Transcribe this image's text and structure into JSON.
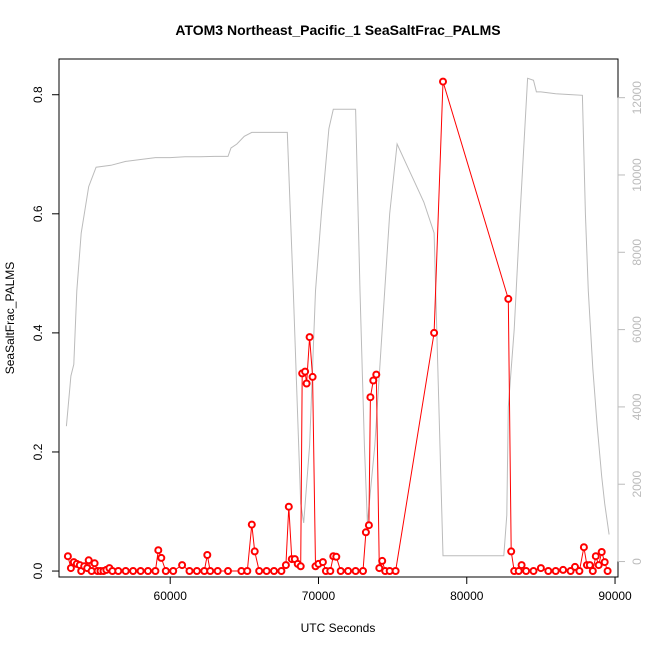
{
  "chart_data": {
    "type": "scatter",
    "title": "ATOM3 Northeast_Pacific_1 SeaSaltFrac_PALMS",
    "xlabel": "UTC Seconds",
    "ylabel": "SeaSaltFrac_PALMS",
    "xlim": [
      52500,
      90200
    ],
    "ylim": [
      -0.01,
      0.86
    ],
    "y2lim": [
      -400,
      13000
    ],
    "x_ticks": [
      60000,
      70000,
      80000,
      90000
    ],
    "y_ticks": [
      0.0,
      0.2,
      0.4,
      0.6,
      0.8
    ],
    "y2_ticks": [
      0,
      2000,
      4000,
      6000,
      8000,
      10000,
      12000
    ],
    "colors": {
      "primary": "#ff0000",
      "secondary": "#bbbbbb",
      "frame": "#000000"
    },
    "series": [
      {
        "role": "primary",
        "style": "points-connected",
        "points": [
          [
            53100,
            0.025
          ],
          [
            53300,
            0.005
          ],
          [
            53500,
            0.015
          ],
          [
            53700,
            0.012
          ],
          [
            53900,
            0.01
          ],
          [
            54000,
            0.0
          ],
          [
            54200,
            0.008
          ],
          [
            54400,
            0.005
          ],
          [
            54500,
            0.018
          ],
          [
            54700,
            0.0
          ],
          [
            54900,
            0.013
          ],
          [
            55100,
            0.0
          ],
          [
            55300,
            0.0
          ],
          [
            55500,
            0.0
          ],
          [
            55700,
            0.002
          ],
          [
            55900,
            0.005
          ],
          [
            56100,
            0.0
          ],
          [
            56500,
            0.0
          ],
          [
            57000,
            0.0
          ],
          [
            57500,
            0.0
          ],
          [
            58000,
            0.0
          ],
          [
            58500,
            0.0
          ],
          [
            59000,
            0.0
          ],
          [
            59200,
            0.035
          ],
          [
            59400,
            0.022
          ],
          [
            59700,
            0.0
          ],
          [
            60200,
            0.0
          ],
          [
            60800,
            0.01
          ],
          [
            61300,
            0.0
          ],
          [
            61800,
            0.0
          ],
          [
            62300,
            0.0
          ],
          [
            62500,
            0.027
          ],
          [
            62700,
            0.0
          ],
          [
            63200,
            0.0
          ],
          [
            63900,
            0.0
          ],
          [
            64800,
            0.0
          ],
          [
            65200,
            0.0
          ],
          [
            65500,
            0.078
          ],
          [
            65700,
            0.033
          ],
          [
            66000,
            0.0
          ],
          [
            66500,
            0.0
          ],
          [
            67000,
            0.0
          ],
          [
            67500,
            0.0
          ],
          [
            67800,
            0.01
          ],
          [
            68000,
            0.108
          ],
          [
            68200,
            0.02
          ],
          [
            68400,
            0.02
          ],
          [
            68600,
            0.012
          ],
          [
            68800,
            0.008
          ],
          [
            68900,
            0.332
          ],
          [
            69100,
            0.335
          ],
          [
            69200,
            0.315
          ],
          [
            69400,
            0.393
          ],
          [
            69600,
            0.326
          ],
          [
            69800,
            0.008
          ],
          [
            70000,
            0.012
          ],
          [
            70300,
            0.015
          ],
          [
            70500,
            0.0
          ],
          [
            70800,
            0.0
          ],
          [
            71000,
            0.025
          ],
          [
            71200,
            0.024
          ],
          [
            71500,
            0.0
          ],
          [
            72000,
            0.0
          ],
          [
            72500,
            0.0
          ],
          [
            73000,
            0.0
          ],
          [
            73200,
            0.065
          ],
          [
            73400,
            0.077
          ],
          [
            73500,
            0.292
          ],
          [
            73700,
            0.32
          ],
          [
            73900,
            0.33
          ],
          [
            74100,
            0.005
          ],
          [
            74300,
            0.017
          ],
          [
            74500,
            0.0
          ],
          [
            74800,
            0.0
          ],
          [
            75200,
            0.0
          ],
          [
            77800,
            0.4
          ],
          [
            78400,
            0.822
          ],
          [
            82800,
            0.457
          ],
          [
            83000,
            0.033
          ],
          [
            83200,
            0.0
          ],
          [
            83500,
            0.0
          ],
          [
            83700,
            0.01
          ],
          [
            84000,
            0.0
          ],
          [
            84500,
            0.0
          ],
          [
            85000,
            0.005
          ],
          [
            85500,
            0.0
          ],
          [
            86000,
            0.0
          ],
          [
            86500,
            0.002
          ],
          [
            87000,
            0.0
          ],
          [
            87300,
            0.007
          ],
          [
            87600,
            0.0
          ],
          [
            87900,
            0.04
          ],
          [
            88100,
            0.01
          ],
          [
            88300,
            0.01
          ],
          [
            88500,
            0.0
          ],
          [
            88700,
            0.025
          ],
          [
            88900,
            0.01
          ],
          [
            89100,
            0.032
          ],
          [
            89300,
            0.015
          ],
          [
            89500,
            0.0
          ]
        ]
      },
      {
        "role": "secondary",
        "style": "line",
        "points": [
          [
            53000,
            3500
          ],
          [
            53300,
            4800
          ],
          [
            53500,
            5100
          ],
          [
            53700,
            7000
          ],
          [
            54000,
            8500
          ],
          [
            54500,
            9700
          ],
          [
            55000,
            10200
          ],
          [
            56000,
            10250
          ],
          [
            57000,
            10350
          ],
          [
            58000,
            10400
          ],
          [
            59000,
            10450
          ],
          [
            60000,
            10450
          ],
          [
            61000,
            10470
          ],
          [
            62000,
            10470
          ],
          [
            63000,
            10480
          ],
          [
            63900,
            10480
          ],
          [
            64100,
            10700
          ],
          [
            64500,
            10800
          ],
          [
            65000,
            11000
          ],
          [
            65500,
            11100
          ],
          [
            66500,
            11100
          ],
          [
            67500,
            11100
          ],
          [
            67900,
            11100
          ],
          [
            68300,
            7000
          ],
          [
            68800,
            1500
          ],
          [
            69000,
            1000
          ],
          [
            69400,
            3000
          ],
          [
            69800,
            7000
          ],
          [
            70200,
            9000
          ],
          [
            70700,
            11200
          ],
          [
            71000,
            11700
          ],
          [
            72000,
            11700
          ],
          [
            72500,
            11700
          ],
          [
            72800,
            7000
          ],
          [
            73100,
            3000
          ],
          [
            73300,
            1000
          ],
          [
            73800,
            3000
          ],
          [
            74300,
            6000
          ],
          [
            74800,
            9000
          ],
          [
            75300,
            10800
          ],
          [
            75900,
            10300
          ],
          [
            76500,
            9800
          ],
          [
            77100,
            9300
          ],
          [
            77800,
            8500
          ],
          [
            78400,
            150
          ],
          [
            79500,
            150
          ],
          [
            80500,
            150
          ],
          [
            81500,
            150
          ],
          [
            82500,
            150
          ],
          [
            82700,
            1200
          ],
          [
            82800,
            4000
          ],
          [
            83200,
            6000
          ],
          [
            83600,
            9000
          ],
          [
            84100,
            12500
          ],
          [
            84500,
            12450
          ],
          [
            84700,
            12150
          ],
          [
            85000,
            12150
          ],
          [
            86000,
            12100
          ],
          [
            87000,
            12080
          ],
          [
            87800,
            12060
          ],
          [
            88000,
            9000
          ],
          [
            88200,
            7000
          ],
          [
            88500,
            5000
          ],
          [
            88800,
            3500
          ],
          [
            89100,
            2200
          ],
          [
            89300,
            1500
          ],
          [
            89600,
            700
          ]
        ]
      }
    ]
  }
}
